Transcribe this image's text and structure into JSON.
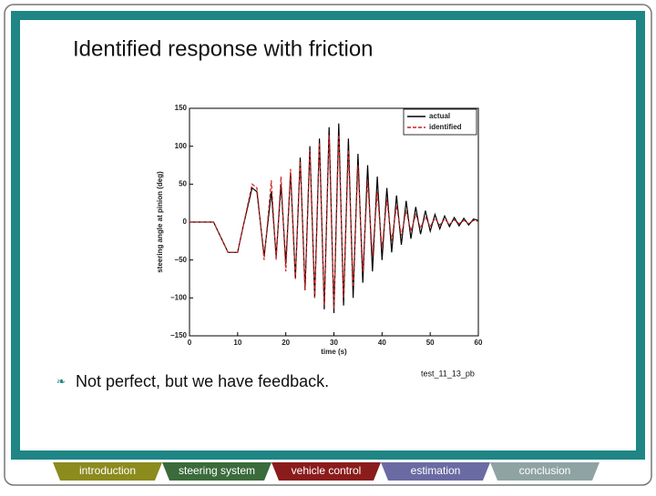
{
  "slide": {
    "title": "Identified response with friction",
    "bullet": "Not perfect, but we have feedback.",
    "caption": "test_11_13_pb"
  },
  "nav": [
    {
      "label": "introduction",
      "color": "#8b8b1e"
    },
    {
      "label": "steering system",
      "color": "#3b6b3b"
    },
    {
      "label": "vehicle control",
      "color": "#8b1c1c"
    },
    {
      "label": "estimation",
      "color": "#6b6ba3"
    },
    {
      "label": "conclusion",
      "color": "#8fa3a3"
    }
  ],
  "chart_data": {
    "type": "line",
    "xlabel": "time (s)",
    "ylabel": "steering angle at pinion (deg)",
    "x": [
      0,
      5,
      8,
      10,
      11,
      13,
      14,
      15.5,
      17,
      18,
      19,
      20,
      21,
      22,
      23,
      24,
      25,
      26,
      27,
      28,
      29,
      30,
      31,
      32,
      33,
      34,
      35,
      36,
      37,
      38,
      39,
      40,
      41,
      42,
      43,
      44,
      45,
      46,
      47,
      48,
      49,
      50,
      51,
      52,
      53,
      54,
      55,
      56,
      57,
      58,
      59,
      60
    ],
    "series": [
      {
        "name": "actual",
        "color": "#000000",
        "dashed": false,
        "values": [
          0,
          0,
          -40,
          -40,
          -10,
          45,
          40,
          -45,
          40,
          -45,
          50,
          -55,
          65,
          -75,
          85,
          -90,
          100,
          -100,
          110,
          -115,
          125,
          -120,
          130,
          -110,
          110,
          -100,
          90,
          -80,
          75,
          -65,
          60,
          -50,
          45,
          -40,
          35,
          -30,
          28,
          -22,
          20,
          -16,
          15,
          -12,
          10,
          -9,
          8,
          -6,
          6,
          -5,
          5,
          -4,
          4,
          2
        ]
      },
      {
        "name": "identified",
        "color": "#cc2222",
        "dashed": true,
        "values": [
          0,
          0,
          -40,
          -40,
          -10,
          50,
          45,
          -50,
          55,
          -50,
          60,
          -65,
          70,
          -75,
          80,
          -90,
          95,
          -100,
          105,
          -110,
          115,
          -115,
          115,
          -100,
          95,
          -85,
          75,
          -65,
          55,
          -45,
          40,
          -35,
          30,
          -25,
          22,
          -18,
          15,
          -12,
          10,
          -8,
          7,
          -6,
          5,
          -4,
          4,
          -3,
          3,
          -2,
          2,
          -2,
          2,
          1
        ]
      }
    ],
    "xlim": [
      0,
      60
    ],
    "xticks": [
      0,
      10,
      20,
      30,
      40,
      50,
      60
    ],
    "ylim": [
      -150,
      150
    ],
    "yticks": [
      {
        "value": -150,
        "label": "−150"
      },
      {
        "value": -100,
        "label": "−100"
      },
      {
        "value": -50,
        "label": "−50"
      },
      0,
      50,
      100,
      150
    ],
    "legend": "upper right"
  }
}
